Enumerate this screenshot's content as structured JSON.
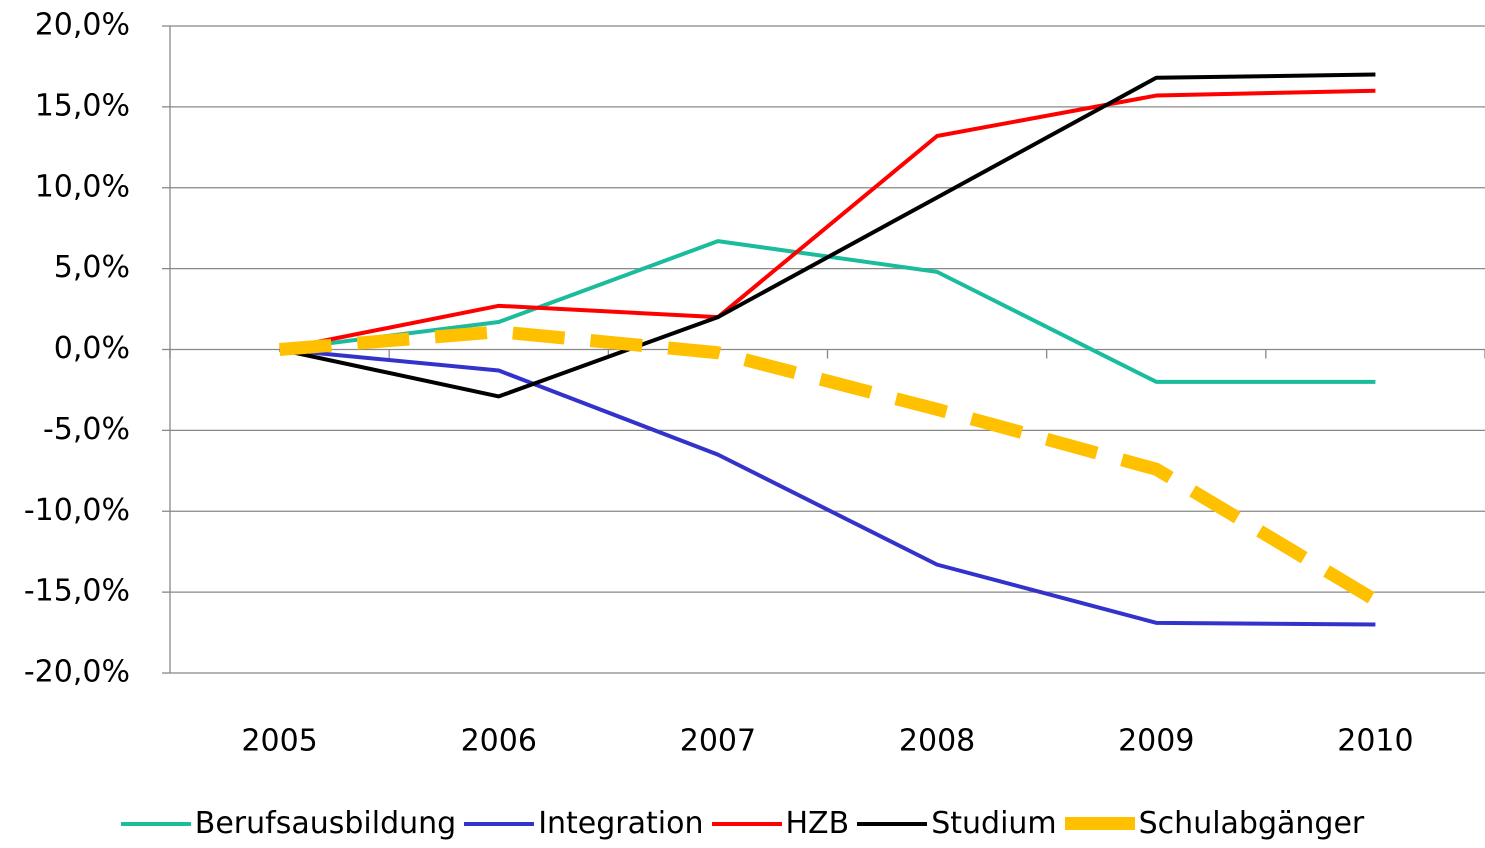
{
  "chart_data": {
    "type": "line",
    "categories": [
      "2005",
      "2006",
      "2007",
      "2008",
      "2009",
      "2010"
    ],
    "series": [
      {
        "name": "Berufsausbildung",
        "color": "#1abc9c",
        "values": [
          0,
          1.7,
          6.7,
          4.8,
          -2.0,
          -2.0
        ]
      },
      {
        "name": "Integration",
        "color": "#3333cc",
        "values": [
          0,
          -1.3,
          -6.5,
          -13.3,
          -16.9,
          -17.0
        ]
      },
      {
        "name": "HZB",
        "color": "#ff0000",
        "values": [
          0,
          2.7,
          2.0,
          13.2,
          15.7,
          16.0
        ]
      },
      {
        "name": "Studium",
        "color": "#000000",
        "values": [
          0,
          -2.9,
          2.0,
          9.4,
          16.8,
          17.0
        ]
      },
      {
        "name": "Schulabgänger",
        "color": "#ffc000",
        "line_style": "dashed",
        "values": [
          0,
          1.1,
          -0.2,
          -3.7,
          -7.4,
          -15.5
        ]
      }
    ],
    "ylim": [
      -20,
      20
    ],
    "yticks": [
      {
        "value": -20,
        "label": "-20,0%"
      },
      {
        "value": -15,
        "label": "-15,0%"
      },
      {
        "value": -10,
        "label": "-10,0%"
      },
      {
        "value": -5,
        "label": "-5,0%"
      },
      {
        "value": 0,
        "label": "0,0%"
      },
      {
        "value": 5,
        "label": "5,0%"
      },
      {
        "value": 10,
        "label": "10,0%"
      },
      {
        "value": 15,
        "label": "15,0%"
      },
      {
        "value": 20,
        "label": "20,0%"
      }
    ],
    "grid": true,
    "legend": "bottom"
  }
}
